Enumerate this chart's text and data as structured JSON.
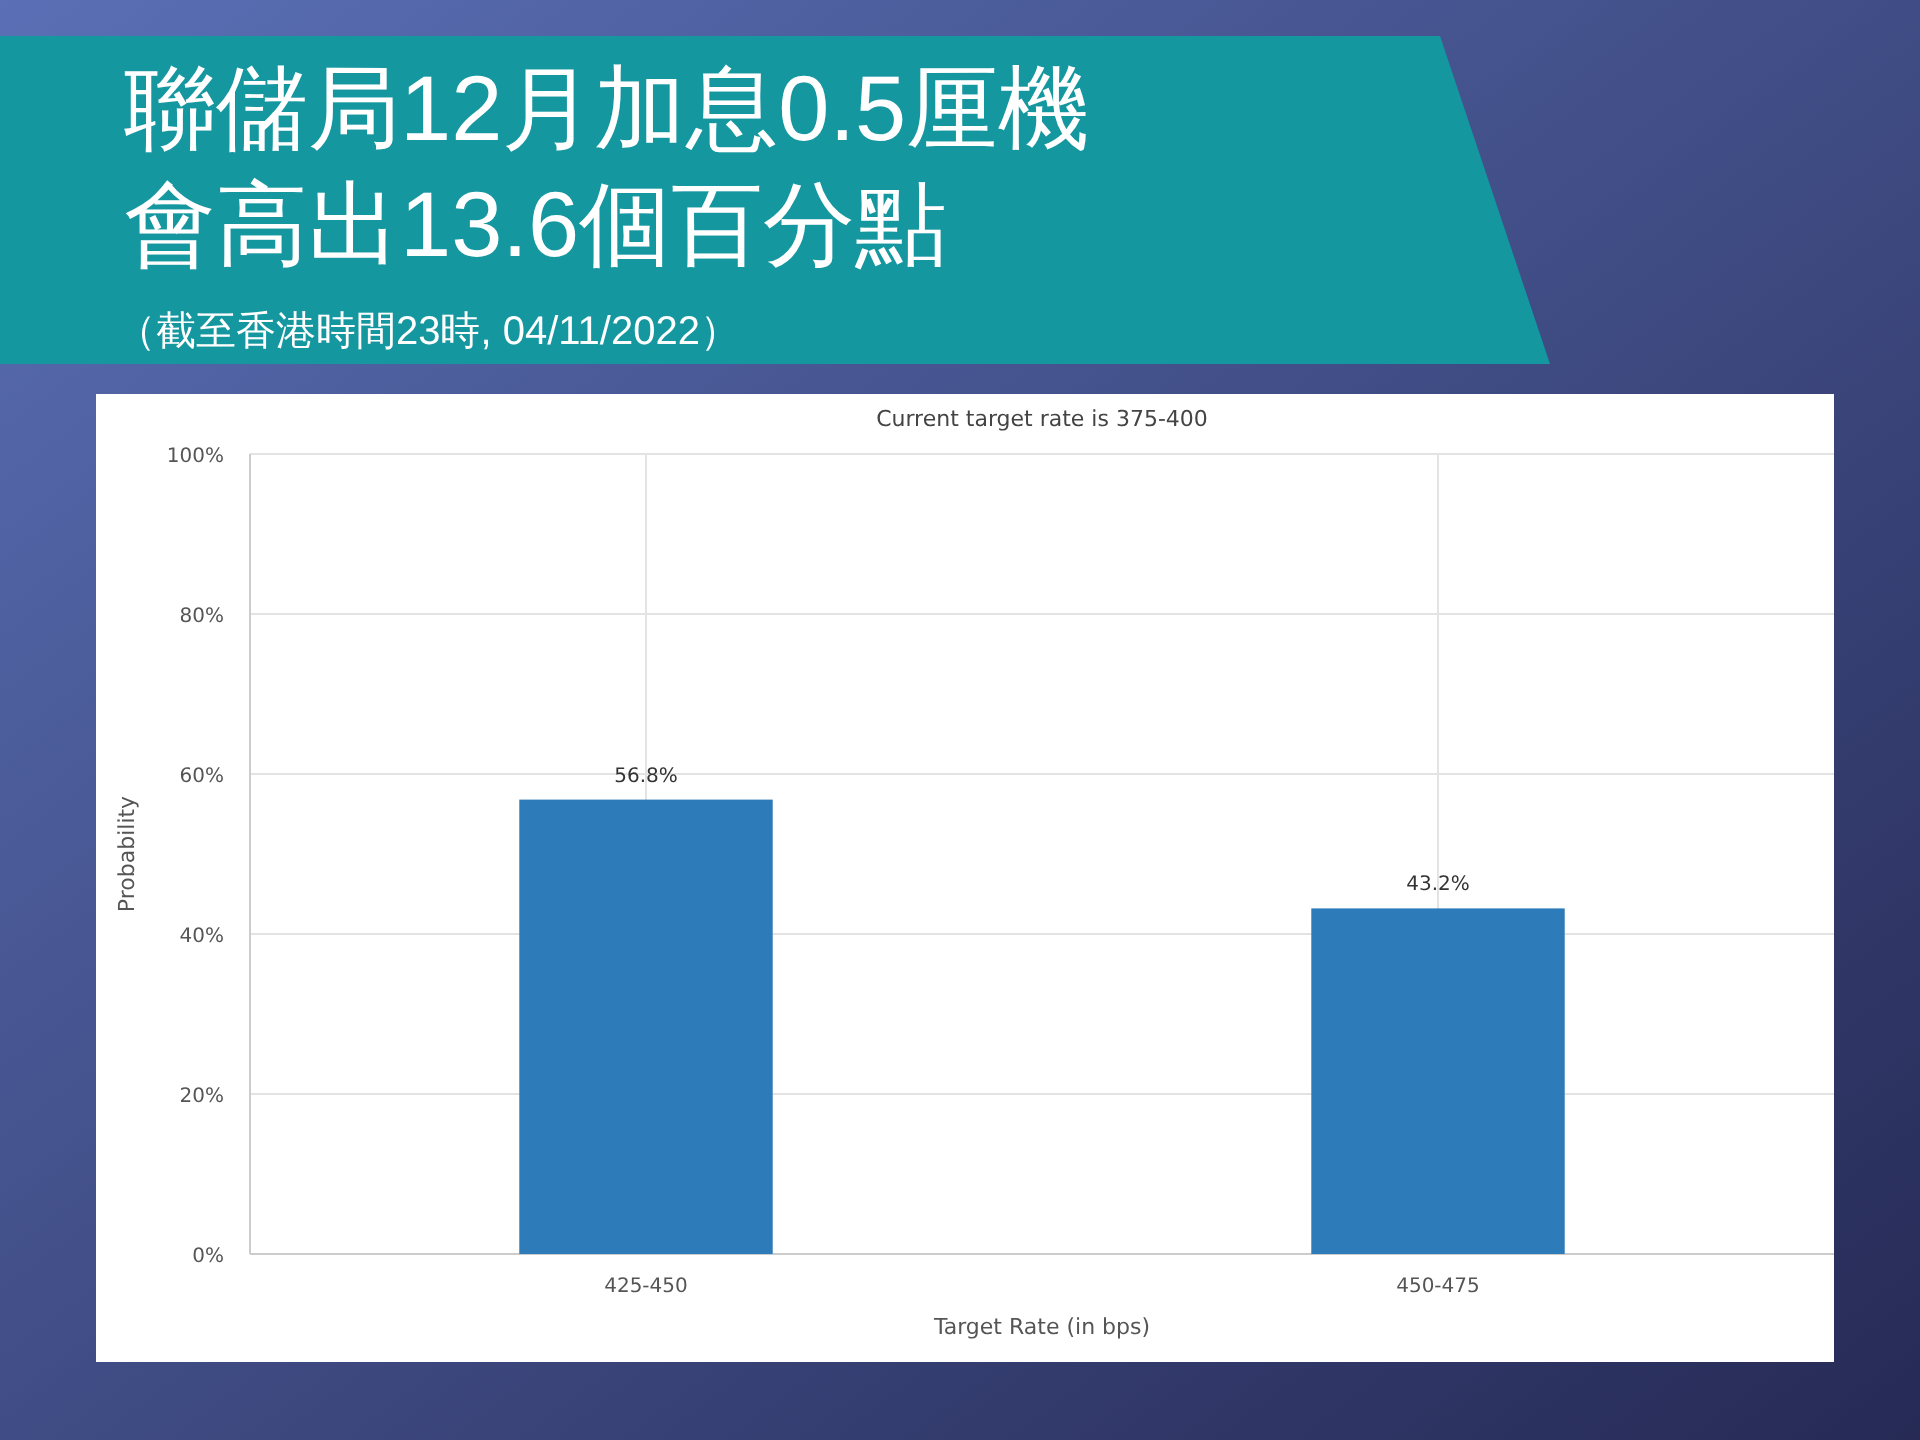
{
  "chart_data": {
    "type": "bar",
    "title": "聯儲局12月加息0.5厘機會高出13.6個百分點",
    "subtitle": "Current target rate is 375-400",
    "annotations": [
      "（截至香港時間23時, 04/11/2022）"
    ],
    "xlabel": "Target Rate (in bps)",
    "ylabel": "Probability",
    "categories": [
      "425-450",
      "450-475"
    ],
    "values": [
      56.8,
      43.2
    ],
    "color": "#2e7bb9",
    "value_labels": [
      "56.8%",
      "43.2%"
    ],
    "ylim": [
      0,
      100
    ],
    "yticks": [
      {
        "value": 0,
        "label": "0%"
      },
      {
        "value": 20,
        "label": "20%"
      },
      {
        "value": 40,
        "label": "40%"
      },
      {
        "value": 60,
        "label": "60%"
      },
      {
        "value": 80,
        "label": "80%"
      },
      {
        "value": 100,
        "label": "100%"
      }
    ],
    "grid": true
  }
}
